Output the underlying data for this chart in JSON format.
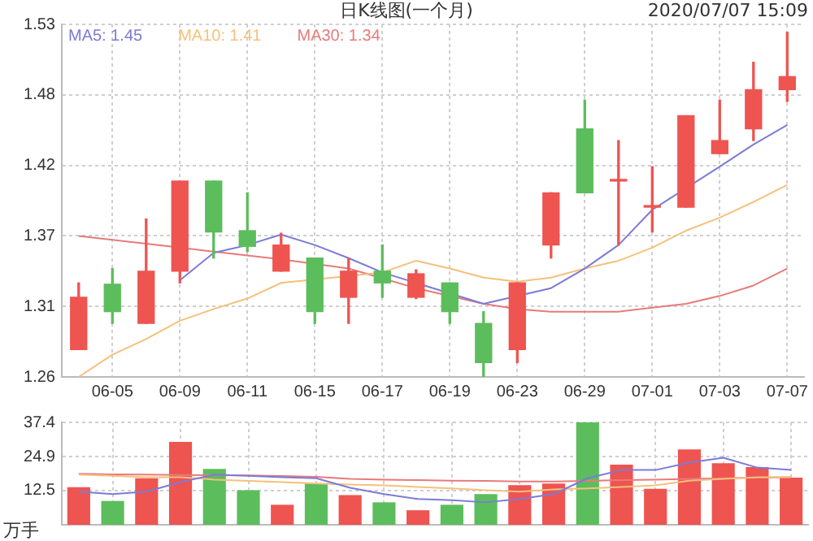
{
  "chart_data": [
    {
      "type": "candlestick",
      "title": "日K线图(一个月)",
      "annotations": [
        "2020/07/07 15:09"
      ],
      "categories": [
        null,
        "06-05",
        null,
        "06-09",
        null,
        "06-11",
        null,
        "06-15",
        null,
        "06-17",
        null,
        "06-19",
        null,
        "06-23",
        null,
        "06-29",
        null,
        "07-01",
        null,
        "07-03",
        null,
        "07-07"
      ],
      "ohlc": [
        [
          1.281,
          1.332,
          1.281,
          1.321
        ],
        [
          1.331,
          1.343,
          1.301,
          1.31
        ],
        [
          1.301,
          1.381,
          1.301,
          1.341
        ],
        [
          1.341,
          1.41,
          1.332,
          1.41
        ],
        [
          1.41,
          1.41,
          1.351,
          1.371
        ],
        [
          1.372,
          1.401,
          1.356,
          1.36
        ],
        [
          1.341,
          1.37,
          1.341,
          1.361
        ],
        [
          1.351,
          1.351,
          1.301,
          1.31
        ],
        [
          1.321,
          1.351,
          1.301,
          1.341
        ],
        [
          1.341,
          1.361,
          1.321,
          1.332
        ],
        [
          1.321,
          1.342,
          1.32,
          1.339
        ],
        [
          1.332,
          1.332,
          1.301,
          1.31
        ],
        [
          1.301,
          1.31,
          1.26,
          1.271
        ],
        [
          1.281,
          1.332,
          1.271,
          1.332
        ],
        [
          1.361,
          1.401,
          1.351,
          1.401
        ],
        [
          1.45,
          1.472,
          1.401,
          1.401
        ],
        [
          1.41,
          1.441,
          1.361,
          1.411
        ],
        [
          1.39,
          1.421,
          1.371,
          1.391
        ],
        [
          1.39,
          1.46,
          1.39,
          1.46
        ],
        [
          1.431,
          1.472,
          1.431,
          1.441
        ],
        [
          1.45,
          1.501,
          1.441,
          1.48
        ],
        [
          1.48,
          1.524,
          1.471,
          1.49
        ]
      ],
      "colors": [
        "#ee5450",
        "#5cbd5c",
        "#ee5450",
        "#ee5450",
        "#5cbd5c",
        "#5cbd5c",
        "#ee5450",
        "#5cbd5c",
        "#ee5450",
        "#5cbd5c",
        "#ee5450",
        "#5cbd5c",
        "#5cbd5c",
        "#ee5450",
        "#ee5450",
        "#5cbd5c",
        "#ee5450",
        "#ee5450",
        "#ee5450",
        "#ee5450",
        "#ee5450",
        "#ee5450"
      ],
      "series": [
        {
          "type": "line",
          "name": "MA5: 1.45",
          "color": "#7b7bd8",
          "values": [
            null,
            null,
            null,
            1.334,
            1.355,
            1.361,
            1.369,
            1.361,
            1.351,
            1.34,
            null,
            null,
            1.316,
            null,
            1.328,
            1.343,
            1.361,
            1.388,
            null,
            1.421,
            1.438,
            1.453
          ]
        },
        {
          "type": "line",
          "name": "MA10: 1.41",
          "color": "#f5c07c",
          "values": [
            1.26,
            1.277,
            1.289,
            1.303,
            1.312,
            1.32,
            1.332,
            null,
            null,
            1.34,
            1.349,
            1.343,
            1.336,
            1.333,
            1.336,
            1.343,
            1.349,
            1.359,
            1.372,
            1.382,
            1.394,
            1.407
          ]
        },
        {
          "type": "line",
          "name": "MA30: 1.34",
          "color": "#e87a7a",
          "values": [
            1.368,
            1.365,
            1.362,
            1.359,
            1.356,
            1.353,
            1.35,
            null,
            1.343,
            null,
            1.328,
            null,
            1.316,
            1.312,
            1.31,
            1.31,
            1.31,
            1.313,
            1.316,
            1.322,
            1.33,
            1.343
          ]
        }
      ],
      "ylim": [
        1.26,
        1.53
      ],
      "yticks": [
        1.26,
        {
          "value": 1.314,
          "label": "1.31"
        },
        {
          "value": 1.368,
          "label": "1.37"
        },
        {
          "value": 1.422,
          "label": "1.42"
        },
        {
          "value": 1.476,
          "label": "1.48"
        },
        1.53
      ],
      "grid": true,
      "legend": "top left"
    },
    {
      "type": "bar",
      "ylabel": "万手",
      "categories": [
        null,
        null,
        null,
        null,
        null,
        null,
        null,
        null,
        null,
        null,
        null,
        null,
        null,
        null,
        null,
        null,
        null,
        null,
        null,
        null,
        null,
        null
      ],
      "series": [
        {
          "type": "bar",
          "values": [
            13.7,
            8.7,
            17.0,
            30.3,
            20.4,
            12.6,
            7.3,
            15.1,
            10.8,
            8.2,
            5.3,
            7.3,
            11.2,
            14.5,
            15.1,
            37.4,
            22.0,
            13.1,
            27.5,
            22.5,
            21.1,
            17.2
          ],
          "colors": [
            "#ee5450",
            "#5cbd5c",
            "#ee5450",
            "#ee5450",
            "#5cbd5c",
            "#5cbd5c",
            "#ee5450",
            "#5cbd5c",
            "#ee5450",
            "#5cbd5c",
            "#ee5450",
            "#5cbd5c",
            "#5cbd5c",
            "#ee5450",
            "#ee5450",
            "#5cbd5c",
            "#ee5450",
            "#ee5450",
            "#ee5450",
            "#ee5450",
            "#ee5450",
            "#ee5450"
          ]
        },
        {
          "type": "line",
          "color": "#7b7bd8",
          "values": [
            12.1,
            11.2,
            12.1,
            15.6,
            18.3,
            17.9,
            17.4,
            17.0,
            13.5,
            11.2,
            9.4,
            9.0,
            8.2,
            9.4,
            11.2,
            17.0,
            20.0,
            20.0,
            22.7,
            24.5,
            20.9,
            20.0
          ]
        },
        {
          "type": "line",
          "color": "#f5c07c",
          "values": [
            18.3,
            17.9,
            17.4,
            17.4,
            16.5,
            16.0,
            15.6,
            15.1,
            14.7,
            14.4,
            13.8,
            13.3,
            12.6,
            12.1,
            12.9,
            13.3,
            13.8,
            14.4,
            16.1,
            16.8,
            17.4,
            17.4
          ]
        },
        {
          "type": "line",
          "color": "#e87a7a",
          "values": [
            18.6,
            18.4,
            18.3,
            18.2,
            18.1,
            18.0,
            17.8,
            17.5,
            16.8,
            16.5,
            16.3,
            16.1,
            16.0,
            15.8,
            15.8,
            16.0,
            16.3,
            16.5,
            16.8,
            17.0,
            17.2,
            17.4
          ]
        }
      ],
      "ylim": [
        0,
        37.4
      ],
      "yticks": [
        12.5,
        24.9,
        37.4
      ],
      "grid": true,
      "tick_labels": "y"
    }
  ]
}
